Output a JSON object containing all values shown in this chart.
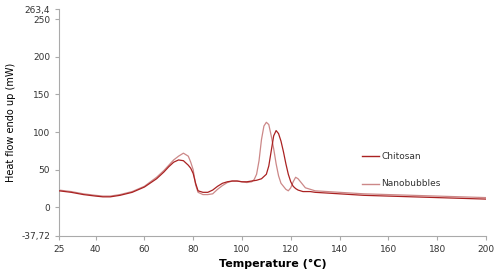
{
  "xlabel": "Temperature (°C)",
  "ylabel": "Heat flow endo up (mW)",
  "xlim": [
    25,
    200
  ],
  "ylim": [
    -37.72,
    263.4
  ],
  "ytick_vals": [
    -37.72,
    0,
    50,
    100,
    150,
    200,
    250,
    263.4
  ],
  "ytick_labels": [
    "-37,72",
    "0",
    "50",
    "100",
    "150",
    "200",
    "250",
    "263,4"
  ],
  "xticks": [
    25,
    40,
    60,
    80,
    100,
    120,
    140,
    160,
    180,
    200
  ],
  "line_color_chitosan": "#aa2222",
  "line_color_nanobubbles": "#cc8888",
  "legend_chitosan": "Chitosan",
  "legend_nanobubbles": "Nanobubbles",
  "background_color": "#ffffff",
  "chitosan_x": [
    25,
    30,
    35,
    40,
    43,
    46,
    50,
    55,
    60,
    65,
    68,
    70,
    72,
    74,
    76,
    78,
    79,
    80,
    81,
    82,
    84,
    86,
    88,
    90,
    92,
    94,
    96,
    98,
    100,
    102,
    104,
    106,
    108,
    110,
    111,
    112,
    113,
    114,
    115,
    116,
    117,
    118,
    119,
    120,
    121,
    122,
    123,
    124,
    125,
    126,
    128,
    130,
    135,
    140,
    145,
    150,
    160,
    170,
    180,
    190,
    200
  ],
  "chitosan_y": [
    22,
    20,
    17,
    15,
    14,
    14,
    16,
    20,
    27,
    38,
    47,
    54,
    60,
    63,
    62,
    56,
    52,
    45,
    32,
    22,
    20,
    20,
    23,
    28,
    32,
    34,
    35,
    35,
    34,
    34,
    35,
    36,
    38,
    44,
    55,
    75,
    95,
    102,
    98,
    88,
    74,
    58,
    44,
    34,
    28,
    25,
    23,
    22,
    21,
    21,
    21,
    20,
    19,
    18,
    17,
    16,
    15,
    14,
    13,
    12,
    11
  ],
  "nanobubbles_x": [
    25,
    30,
    35,
    40,
    43,
    46,
    50,
    55,
    60,
    65,
    68,
    70,
    72,
    74,
    76,
    78,
    79,
    80,
    81,
    82,
    84,
    86,
    88,
    90,
    92,
    94,
    96,
    98,
    100,
    102,
    104,
    105,
    106,
    107,
    108,
    109,
    110,
    111,
    112,
    113,
    114,
    115,
    116,
    117,
    118,
    119,
    120,
    121,
    122,
    123,
    124,
    125,
    126,
    128,
    130,
    135,
    140,
    145,
    150,
    160,
    170,
    180,
    190,
    200
  ],
  "nanobubbles_y": [
    23,
    21,
    18,
    16,
    15,
    15,
    17,
    21,
    28,
    40,
    49,
    56,
    63,
    68,
    72,
    68,
    60,
    50,
    30,
    20,
    17,
    17,
    18,
    24,
    29,
    33,
    35,
    35,
    34,
    33,
    34,
    37,
    44,
    62,
    90,
    108,
    113,
    110,
    95,
    78,
    58,
    42,
    32,
    28,
    24,
    22,
    26,
    34,
    40,
    38,
    34,
    30,
    26,
    24,
    22,
    21,
    20,
    19,
    18,
    17,
    16,
    15,
    14,
    13
  ]
}
